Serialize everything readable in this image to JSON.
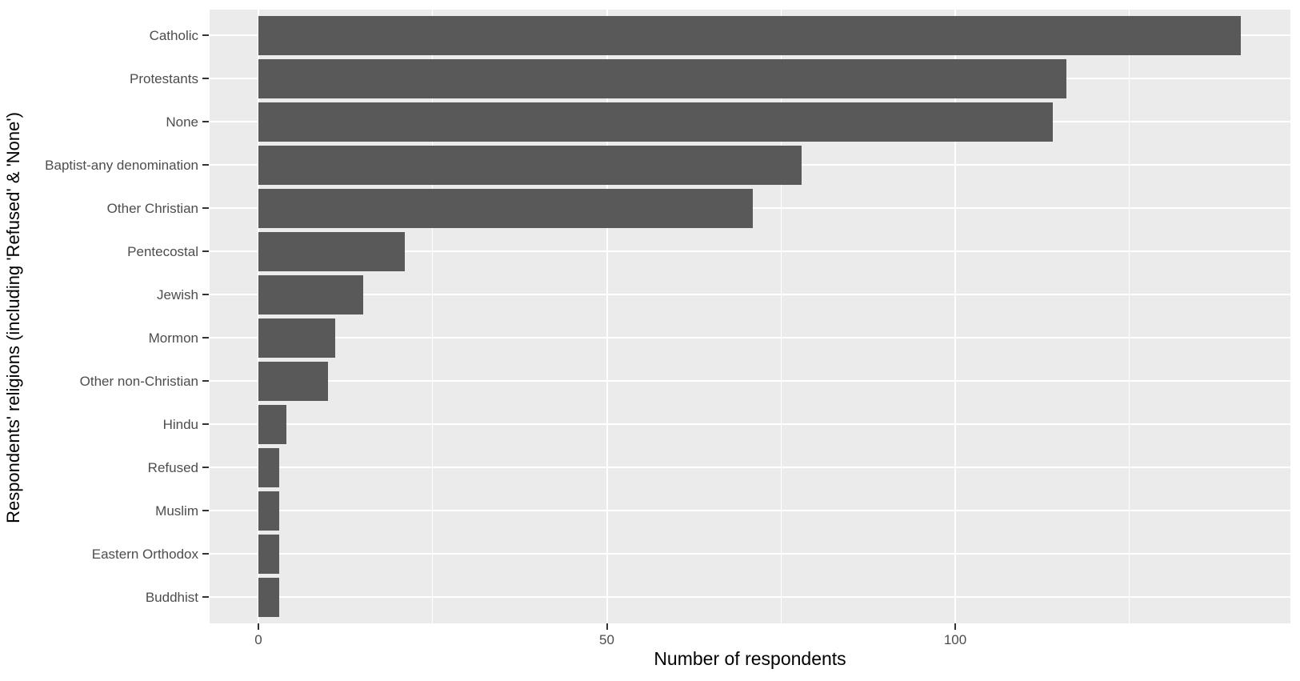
{
  "figure": {
    "background": "#FFFFFF",
    "panel_background": "#EBEBEB",
    "bar_color": "#595959",
    "grid_color": "#FFFFFF",
    "tick_mark_color": "#333333",
    "axis_text_color": "#4D4D4D",
    "axis_title_color": "#000000"
  },
  "chart_data": {
    "type": "bar",
    "orientation": "horizontal",
    "title": "",
    "xlabel": "Number of respondents",
    "ylabel": "Respondents' religions (including 'Refused' & 'None')",
    "categories": [
      "Catholic",
      "Protestants",
      "None",
      "Baptist-any denomination",
      "Other Christian",
      "Pentecostal",
      "Jewish",
      "Mormon",
      "Other non-Christian",
      "Hindu",
      "Refused",
      "Muslim",
      "Eastern Orthodox",
      "Buddhist"
    ],
    "values": [
      141,
      116,
      114,
      78,
      71,
      21,
      15,
      11,
      10,
      4,
      3,
      3,
      3,
      3
    ],
    "x_ticks": [
      0,
      50,
      100
    ],
    "x_minor_ticks": [
      25,
      75,
      125
    ],
    "xlim": [
      -7.05,
      148.05
    ],
    "ylim_categories": "top-to-bottom descending",
    "grid": true,
    "legend": false,
    "bar_relative_width": 0.9
  }
}
